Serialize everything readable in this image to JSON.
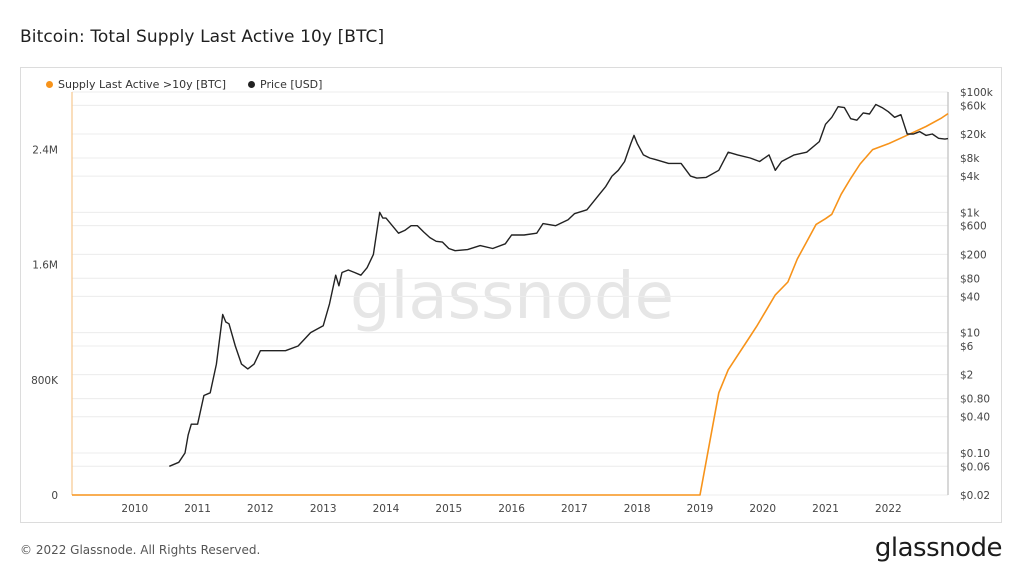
{
  "title": "Bitcoin: Total Supply Last Active 10y [BTC]",
  "footer": "© 2022 Glassnode. All Rights Reserved.",
  "brand": "glassnode",
  "watermark": "glassnode",
  "colors": {
    "supply": "#f7931a",
    "price": "#222222",
    "grid": "#ececec",
    "axis_text": "#444444"
  },
  "chart_data": {
    "type": "line",
    "title": "Bitcoin: Total Supply Last Active 10y [BTC]",
    "legend_placement": "top-left",
    "grid": true,
    "x_ticks": [
      "2010",
      "2011",
      "2012",
      "2013",
      "2014",
      "2015",
      "2016",
      "2017",
      "2018",
      "2019",
      "2020",
      "2021",
      "2022"
    ],
    "xlim": [
      2009.0,
      2022.95
    ],
    "y_left": {
      "scale": "linear",
      "ylim": [
        0,
        2800000
      ],
      "ticks": [
        0,
        800000,
        1600000,
        2400000
      ],
      "tick_labels": [
        "0",
        "800K",
        "1.6M",
        "2.4M"
      ]
    },
    "y_right": {
      "scale": "log",
      "ylim": [
        0.02,
        100000
      ],
      "ticks": [
        0.02,
        0.06,
        0.1,
        0.4,
        0.8,
        2,
        6,
        10,
        40,
        80,
        200,
        600,
        1000,
        4000,
        8000,
        20000,
        60000,
        100000
      ],
      "tick_labels": [
        "$0.02",
        "$0.06",
        "$0.10",
        "$0.40",
        "$0.80",
        "$2",
        "$6",
        "$10",
        "$40",
        "$80",
        "$200",
        "$600",
        "$1k",
        "$4k",
        "$8k",
        "$20k",
        "$60k",
        "$100k"
      ]
    },
    "series": [
      {
        "name": "Supply Last Active >10y [BTC]",
        "axis": "left",
        "color": "#f7931a",
        "x": [
          2009.0,
          2019.0,
          2019.15,
          2019.3,
          2019.45,
          2019.6,
          2019.75,
          2019.9,
          2020.05,
          2020.2,
          2020.4,
          2020.55,
          2020.7,
          2020.85,
          2021.0,
          2021.1,
          2021.25,
          2021.4,
          2021.55,
          2021.75,
          2022.0,
          2022.3,
          2022.6,
          2022.85,
          2022.95
        ],
        "y": [
          0,
          0,
          355000,
          710000,
          870000,
          970000,
          1070000,
          1170000,
          1280000,
          1390000,
          1480000,
          1640000,
          1760000,
          1880000,
          1920000,
          1950000,
          2090000,
          2200000,
          2300000,
          2400000,
          2440000,
          2500000,
          2560000,
          2620000,
          2650000
        ]
      },
      {
        "name": "Price [USD]",
        "axis": "right",
        "color": "#222222",
        "x": [
          2010.55,
          2010.7,
          2010.8,
          2010.85,
          2010.9,
          2011.0,
          2011.1,
          2011.2,
          2011.3,
          2011.4,
          2011.45,
          2011.5,
          2011.6,
          2011.7,
          2011.8,
          2011.9,
          2012.0,
          2012.2,
          2012.4,
          2012.6,
          2012.8,
          2013.0,
          2013.1,
          2013.2,
          2013.25,
          2013.3,
          2013.4,
          2013.5,
          2013.6,
          2013.7,
          2013.8,
          2013.9,
          2013.95,
          2014.0,
          2014.1,
          2014.2,
          2014.3,
          2014.4,
          2014.5,
          2014.6,
          2014.7,
          2014.8,
          2014.9,
          2015.0,
          2015.1,
          2015.3,
          2015.5,
          2015.7,
          2015.9,
          2016.0,
          2016.2,
          2016.4,
          2016.5,
          2016.7,
          2016.9,
          2017.0,
          2017.2,
          2017.4,
          2017.5,
          2017.6,
          2017.7,
          2017.8,
          2017.9,
          2017.95,
          2018.0,
          2018.1,
          2018.2,
          2018.3,
          2018.5,
          2018.7,
          2018.85,
          2018.95,
          2019.1,
          2019.3,
          2019.45,
          2019.6,
          2019.8,
          2019.95,
          2020.1,
          2020.2,
          2020.3,
          2020.5,
          2020.7,
          2020.9,
          2021.0,
          2021.1,
          2021.2,
          2021.3,
          2021.4,
          2021.5,
          2021.6,
          2021.7,
          2021.8,
          2021.9,
          2022.0,
          2022.1,
          2022.2,
          2022.3,
          2022.4,
          2022.45,
          2022.5,
          2022.6,
          2022.7,
          2022.8,
          2022.9,
          2022.95
        ],
        "y": [
          0.06,
          0.07,
          0.1,
          0.2,
          0.3,
          0.3,
          0.9,
          1.0,
          3,
          20,
          15,
          14,
          6,
          3,
          2.5,
          3,
          5,
          5,
          5,
          6,
          10,
          13,
          30,
          90,
          60,
          100,
          110,
          100,
          90,
          120,
          200,
          1000,
          800,
          800,
          600,
          450,
          500,
          600,
          600,
          470,
          380,
          330,
          320,
          250,
          230,
          240,
          280,
          250,
          300,
          420,
          420,
          450,
          650,
          600,
          750,
          950,
          1100,
          2000,
          2700,
          4000,
          5000,
          7000,
          14000,
          19000,
          14000,
          9000,
          8000,
          7500,
          6500,
          6500,
          4000,
          3700,
          3800,
          5000,
          10000,
          9000,
          8000,
          7000,
          9000,
          5000,
          7000,
          9000,
          10000,
          15000,
          29000,
          38000,
          57000,
          55000,
          36000,
          34000,
          45000,
          43000,
          62000,
          55000,
          47000,
          38000,
          42000,
          20000,
          20000,
          21000,
          22000,
          19000,
          20000,
          17000,
          16500,
          16800
        ]
      }
    ]
  }
}
